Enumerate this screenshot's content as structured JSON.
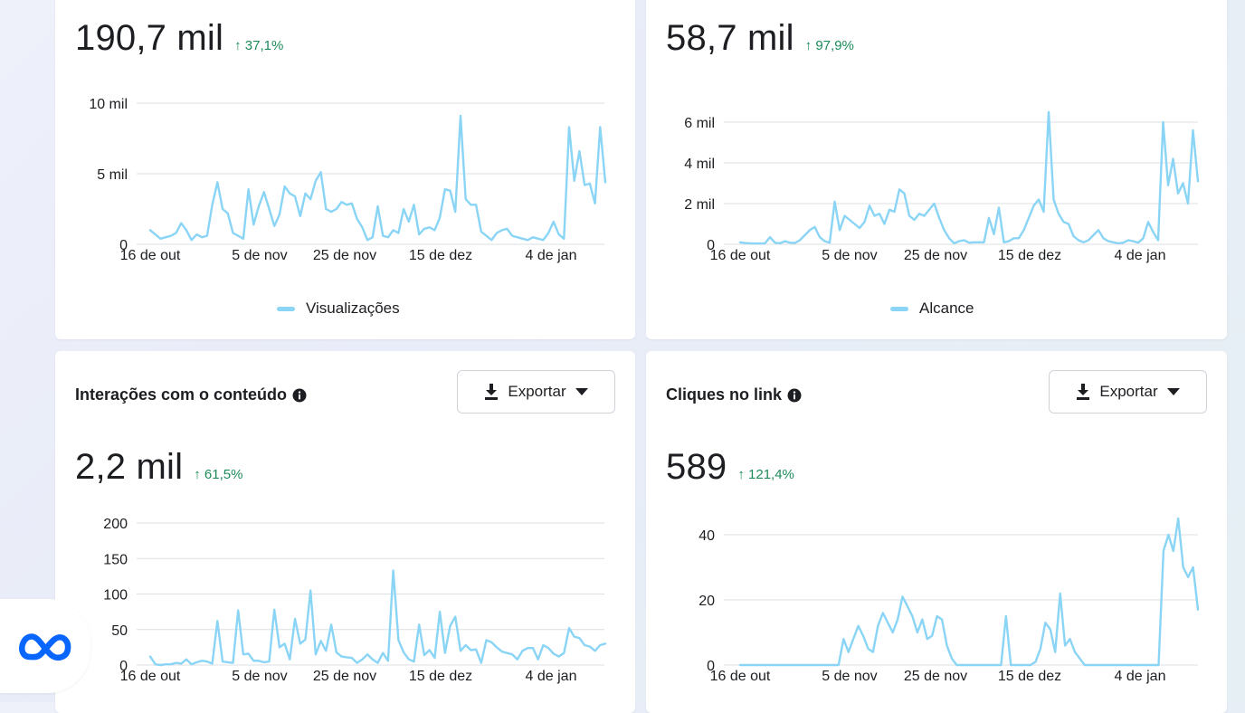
{
  "cards": {
    "views": {
      "value": "190,7 mil",
      "delta": "↑ 37,1%",
      "legend": "Visualizações"
    },
    "reach": {
      "value": "58,7 mil",
      "delta": "↑ 97,9%",
      "legend": "Alcance"
    },
    "interactions": {
      "title": "Interações com o conteúdo",
      "value": "2,2 mil",
      "delta": "↑ 61,5%",
      "export_label": "Exportar"
    },
    "clicks": {
      "title": "Cliques no link",
      "value": "589",
      "delta": "↑ 121,4%",
      "export_label": "Exportar"
    }
  },
  "icons": {
    "info": "info-circle-icon",
    "download": "download-icon",
    "dropdown": "caret-down-icon",
    "brand": "meta-logo-icon"
  },
  "colors": {
    "line": "#8ad4f5",
    "delta_positive": "#1e8a5a",
    "brand": "#0866ff"
  },
  "chart_data": [
    {
      "type": "line",
      "series": [
        {
          "name": "Visualizações",
          "values": [
            1000,
            700,
            400,
            500,
            600,
            800,
            1500,
            1000,
            300,
            700,
            500,
            600,
            2800,
            4400,
            2500,
            2200,
            800,
            600,
            400,
            3900,
            1400,
            2700,
            3700,
            2500,
            1300,
            2100,
            4100,
            3600,
            3400,
            2000,
            3600,
            3200,
            4500,
            5100,
            2500,
            2300,
            2500,
            3000,
            2800,
            2900,
            1800,
            1200,
            300,
            500,
            2700,
            600,
            500,
            1000,
            800,
            2500,
            1600,
            2800,
            700,
            1100,
            1200,
            1000,
            1900,
            3900,
            3800,
            2300,
            9100,
            3200,
            2800,
            2800,
            900,
            600,
            300,
            800,
            1000,
            1100,
            600,
            500,
            400,
            300,
            500,
            400,
            300,
            800,
            1600,
            700,
            400,
            8300,
            4500,
            6600,
            4200,
            4300,
            2900,
            8300,
            4400
          ]
        }
      ],
      "x_ticks": [
        "16 de out",
        "5 de nov",
        "25 de nov",
        "15 de dez",
        "4 de jan"
      ],
      "y_ticks": [
        "0",
        "5 mil",
        "10 mil"
      ],
      "y_tick_values": [
        0,
        5000,
        10000
      ],
      "ylim": [
        0,
        10000
      ]
    },
    {
      "type": "line",
      "series": [
        {
          "name": "Alcance",
          "values": [
            100,
            60,
            50,
            40,
            40,
            50,
            350,
            80,
            50,
            150,
            80,
            60,
            200,
            450,
            700,
            850,
            350,
            150,
            80,
            2100,
            700,
            1400,
            1200,
            1000,
            800,
            1100,
            1900,
            1400,
            1500,
            1000,
            1700,
            1600,
            2700,
            2500,
            1400,
            1200,
            1500,
            1400,
            1700,
            2000,
            1300,
            700,
            300,
            50,
            150,
            200,
            80,
            100,
            100,
            100,
            1300,
            500,
            1800,
            100,
            150,
            300,
            300,
            700,
            1300,
            1900,
            2200,
            1600,
            6500,
            2200,
            1500,
            1100,
            1000,
            400,
            200,
            100,
            200,
            450,
            700,
            300,
            150,
            100,
            50,
            80,
            200,
            150,
            80,
            300,
            1100,
            600,
            200,
            6000,
            2900,
            4200,
            2500,
            3000,
            2000,
            5600,
            3100
          ]
        }
      ],
      "x_ticks": [
        "16 de out",
        "5 de nov",
        "25 de nov",
        "15 de dez",
        "4 de jan"
      ],
      "y_ticks": [
        "0",
        "2 mil",
        "4 mil",
        "6 mil"
      ],
      "y_tick_values": [
        0,
        2000,
        4000,
        6000
      ],
      "ylim": [
        0,
        6000
      ]
    },
    {
      "type": "line",
      "series": [
        {
          "name": "Interações com o conteúdo",
          "values": [
            12,
            1,
            0,
            1,
            1,
            3,
            2,
            8,
            1,
            4,
            6,
            5,
            2,
            62,
            5,
            4,
            3,
            77,
            15,
            16,
            6,
            6,
            4,
            5,
            78,
            25,
            30,
            8,
            65,
            30,
            36,
            105,
            15,
            34,
            20,
            57,
            18,
            12,
            11,
            10,
            3,
            8,
            15,
            8,
            3,
            17,
            6,
            133,
            35,
            18,
            8,
            5,
            57,
            14,
            21,
            10,
            75,
            17,
            55,
            68,
            20,
            28,
            21,
            22,
            3,
            35,
            32,
            25,
            19,
            17,
            15,
            8,
            20,
            24,
            24,
            8,
            28,
            24,
            16,
            12,
            17,
            52,
            40,
            38,
            28,
            26,
            20,
            28,
            30
          ]
        }
      ],
      "x_ticks": [
        "16 de out",
        "5 de nov",
        "25 de nov",
        "15 de dez",
        "4 de jan"
      ],
      "y_ticks": [
        "0",
        "50",
        "100",
        "150",
        "200"
      ],
      "y_tick_values": [
        0,
        50,
        100,
        150,
        200
      ],
      "ylim": [
        0,
        200
      ]
    },
    {
      "type": "line",
      "series": [
        {
          "name": "Cliques no link",
          "values": [
            0,
            0,
            0,
            0,
            0,
            0,
            0,
            0,
            0,
            0,
            0,
            0,
            0,
            0,
            0,
            0,
            0,
            0,
            0,
            0,
            0,
            8,
            4,
            8,
            12,
            9,
            5,
            4,
            12,
            16,
            13,
            10,
            14,
            21,
            18,
            15,
            10,
            14,
            8,
            9,
            15,
            14,
            6,
            2,
            0,
            0,
            0,
            0,
            0,
            0,
            0,
            0,
            0,
            0,
            15,
            0,
            0,
            0,
            0,
            0,
            1,
            5,
            13,
            11,
            4,
            22,
            6,
            8,
            4,
            2,
            0,
            0,
            0,
            0,
            0,
            0,
            0,
            0,
            0,
            0,
            0,
            0,
            0,
            0,
            0,
            0,
            35,
            40,
            35,
            45,
            30,
            27,
            30,
            17
          ]
        }
      ],
      "x_ticks": [
        "16 de out",
        "5 de nov",
        "25 de nov",
        "15 de dez",
        "4 de jan"
      ],
      "y_ticks": [
        "0",
        "20",
        "40"
      ],
      "y_tick_values": [
        0,
        20,
        40
      ],
      "ylim": [
        0,
        45
      ]
    }
  ]
}
